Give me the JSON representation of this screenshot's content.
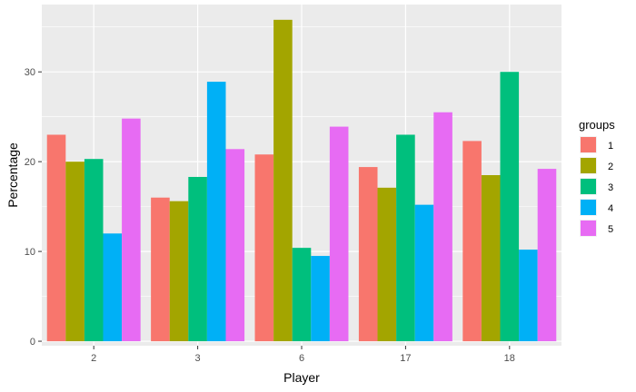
{
  "chart_data": {
    "type": "bar",
    "xlabel": "Player",
    "ylabel": "Percentage",
    "categories": [
      "2",
      "3",
      "6",
      "17",
      "18"
    ],
    "ylim": [
      -0.5,
      37.5
    ],
    "yticks": [
      0,
      10,
      20,
      30
    ],
    "grid": true,
    "legend_title": "groups",
    "legend_position": "right",
    "series": [
      {
        "name": "1",
        "color": "#F8766D",
        "values": [
          23.0,
          16.0,
          20.8,
          19.4,
          22.3
        ]
      },
      {
        "name": "2",
        "color": "#A3A500",
        "values": [
          20.0,
          15.6,
          35.8,
          17.1,
          18.5
        ]
      },
      {
        "name": "3",
        "color": "#00BF7D",
        "values": [
          20.3,
          18.3,
          10.4,
          23.0,
          30.0
        ]
      },
      {
        "name": "4",
        "color": "#00B0F6",
        "values": [
          12.0,
          28.9,
          9.5,
          15.2,
          10.2
        ]
      },
      {
        "name": "5",
        "color": "#E76BF3",
        "values": [
          24.8,
          21.4,
          23.9,
          25.5,
          19.2
        ]
      }
    ]
  },
  "colors": {
    "panel_background": "#EBEBEB",
    "grid_major": "#FFFFFF",
    "tick_text": "#4D4D4D"
  }
}
